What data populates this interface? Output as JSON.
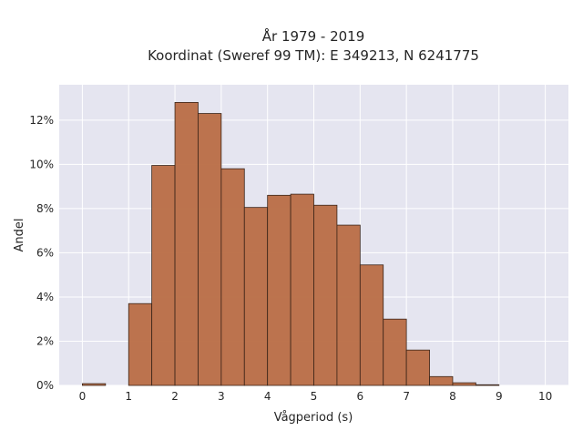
{
  "chart_data": {
    "type": "bar",
    "title": "År 1979 - 2019",
    "subtitle": "Koordinat (Sweref 99 TM): E 349213, N 6241775",
    "xlabel": "Vågperiod (s)",
    "ylabel": "Andel",
    "bin_width": 0.5,
    "bins_start": [
      0,
      0.5,
      1,
      1.5,
      2,
      2.5,
      3,
      3.5,
      4,
      4.5,
      5,
      5.5,
      6,
      6.5,
      7,
      7.5,
      8,
      8.5,
      9,
      9.5
    ],
    "values": [
      0.08,
      0,
      3.7,
      9.95,
      12.8,
      12.3,
      9.8,
      8.05,
      8.6,
      8.65,
      8.15,
      7.25,
      5.45,
      3.0,
      1.6,
      0.4,
      0.12,
      0.03,
      0,
      0
    ],
    "value_unit": "%",
    "xlim": [
      -0.5,
      10.5
    ],
    "ylim": [
      0,
      13.6
    ],
    "x_ticks": [
      "0",
      "1",
      "2",
      "3",
      "4",
      "5",
      "6",
      "7",
      "8",
      "9",
      "10"
    ],
    "y_ticks": [
      "0%",
      "2%",
      "4%",
      "6%",
      "8%",
      "10%",
      "12%"
    ],
    "grid": true,
    "colors": {
      "bar_fill": "#b96d45",
      "bar_edge": "#3a2418",
      "plot_bg": "#e5e5f0",
      "grid": "#ffffff"
    }
  }
}
